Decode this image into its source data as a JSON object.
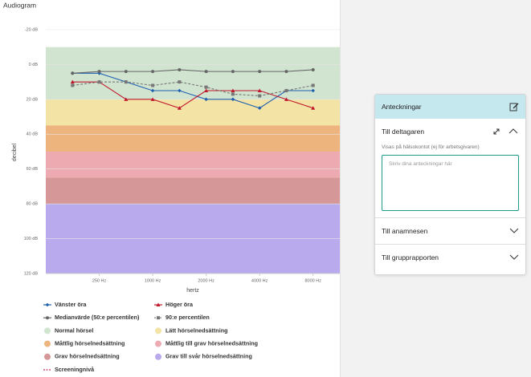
{
  "chart_data": {
    "type": "line",
    "title": "Audiogram",
    "x_label": "hertz",
    "y_label": "decibel",
    "categories": [
      null,
      "250 Hz",
      null,
      "1000 Hz",
      null,
      "2000 Hz",
      null,
      "4000 Hz",
      null,
      "8000 Hz"
    ],
    "ylim": [
      -20,
      120
    ],
    "y_inverted": true,
    "grid": true,
    "yticks": [
      {
        "value": -20,
        "label": "-20 dB"
      },
      {
        "value": 0,
        "label": "0 dB"
      },
      {
        "value": 20,
        "label": "20 dB"
      },
      {
        "value": 40,
        "label": "40 dB"
      },
      {
        "value": 60,
        "label": "60 dB"
      },
      {
        "value": 80,
        "label": "80 dB"
      },
      {
        "value": 100,
        "label": "100 dB"
      },
      {
        "value": 120,
        "label": "120 dB"
      }
    ],
    "series": [
      {
        "name": "Vänster öra",
        "color": "#1f5fb0",
        "marker": "diamond",
        "dash": false,
        "values": [
          5,
          5,
          10,
          15,
          15,
          20,
          20,
          25,
          15,
          15
        ]
      },
      {
        "name": "Höger öra",
        "color": "#c0182b",
        "marker": "triangle",
        "dash": false,
        "values": [
          10,
          10,
          20,
          20,
          25,
          15,
          15,
          15,
          20,
          25
        ]
      },
      {
        "name": "Medianvärde (50:e percentilen)",
        "color": "#666666",
        "marker": "circle",
        "dash": false,
        "values": [
          5,
          4,
          4,
          4,
          3,
          4,
          4,
          4,
          4,
          3
        ]
      },
      {
        "name": "90:e percentilen",
        "color": "#777777",
        "marker": "square",
        "dash": true,
        "values": [
          12,
          10,
          10,
          12,
          10,
          13,
          17,
          18,
          15,
          12
        ]
      },
      {
        "name": "Screeningnivå",
        "color": "#c0306a",
        "marker": "none",
        "dash": true,
        "values": [
          null,
          null,
          null,
          null,
          null,
          null,
          null,
          null,
          null,
          null
        ]
      }
    ],
    "bands": [
      {
        "name": "Normal hörsel",
        "color": "#d0e4d0",
        "range": [
          -10,
          20
        ]
      },
      {
        "name": "Lätt hörselnedsättning",
        "color": "#f3e4a6",
        "range": [
          20,
          35
        ]
      },
      {
        "name": "Måttlig hörselnedsättning",
        "color": "#eeb47e",
        "range": [
          35,
          50
        ]
      },
      {
        "name": "Måttlig till grav hörselnedsättning",
        "color": "#edabb1",
        "range": [
          50,
          65
        ]
      },
      {
        "name": "Grav hörselnedsättning",
        "color": "#d59797",
        "range": [
          65,
          80
        ]
      },
      {
        "name": "Grav till svår hörselnedsättning",
        "color": "#b9aaee",
        "range": [
          80,
          120
        ]
      }
    ]
  },
  "panel": {
    "title": "Anteckningar",
    "section1": "Till deltagaren",
    "note": "Visas på hälsokontot (ej för arbetsgivaren)",
    "placeholder": "Skriv dina anteckningar här",
    "section2": "Till anamnesen",
    "section3": "Till grupprapporten"
  }
}
